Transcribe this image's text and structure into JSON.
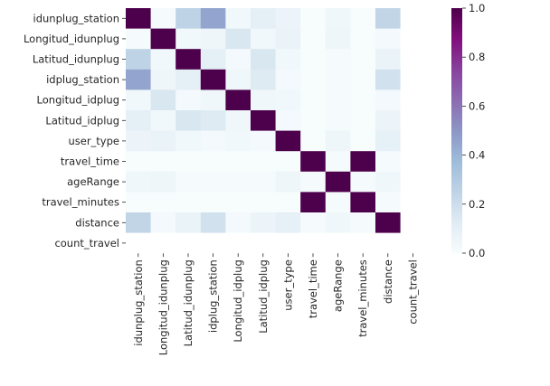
{
  "chart_data": {
    "type": "heatmap",
    "title": "",
    "xlabel": "",
    "ylabel": "",
    "variables": [
      "idunplug_station",
      "Longitud_idunplug",
      "Latitud_idunplug",
      "idplug_station",
      "Longitud_idplug",
      "Latitud_idplug",
      "user_type",
      "travel_time",
      "ageRange",
      "travel_minutes",
      "distance",
      "count_travel"
    ],
    "matrix": [
      [
        1.0,
        0.01,
        0.25,
        0.45,
        0.03,
        0.1,
        0.06,
        0.0,
        0.04,
        0.0,
        0.24,
        null
      ],
      [
        0.01,
        1.0,
        0.03,
        0.05,
        0.15,
        0.03,
        0.07,
        0.0,
        0.05,
        0.0,
        0.02,
        null
      ],
      [
        0.25,
        0.03,
        1.0,
        0.1,
        0.02,
        0.15,
        0.03,
        0.0,
        0.01,
        0.0,
        0.07,
        null
      ],
      [
        0.45,
        0.05,
        0.1,
        1.0,
        0.04,
        0.13,
        0.02,
        0.0,
        0.01,
        0.0,
        0.18,
        null
      ],
      [
        0.03,
        0.15,
        0.02,
        0.04,
        1.0,
        0.04,
        0.03,
        0.0,
        0.01,
        0.0,
        0.02,
        null
      ],
      [
        0.1,
        0.03,
        0.15,
        0.13,
        0.04,
        1.0,
        0.02,
        0.0,
        0.01,
        0.0,
        0.06,
        null
      ],
      [
        0.06,
        0.07,
        0.03,
        0.02,
        0.03,
        0.02,
        1.0,
        0.0,
        0.05,
        0.0,
        0.09,
        null
      ],
      [
        0.0,
        0.0,
        0.0,
        0.0,
        0.0,
        0.0,
        0.0,
        1.0,
        0.01,
        1.0,
        0.01,
        null
      ],
      [
        0.04,
        0.05,
        0.01,
        0.01,
        0.01,
        0.01,
        0.05,
        0.01,
        1.0,
        0.01,
        0.04,
        null
      ],
      [
        0.0,
        0.0,
        0.0,
        0.0,
        0.0,
        0.0,
        0.0,
        1.0,
        0.01,
        1.0,
        0.01,
        null
      ],
      [
        0.24,
        0.02,
        0.07,
        0.18,
        0.02,
        0.06,
        0.09,
        0.01,
        0.04,
        0.01,
        1.0,
        null
      ],
      [
        null,
        null,
        null,
        null,
        null,
        null,
        null,
        null,
        null,
        null,
        null,
        null
      ]
    ],
    "colormap": "BuPu",
    "colorbar": {
      "range": [
        0.0,
        1.0
      ],
      "ticks": [
        0.0,
        0.2,
        0.4,
        0.6,
        0.8,
        1.0
      ],
      "tick_labels": [
        "0.0",
        "0.2",
        "0.4",
        "0.6",
        "0.8",
        "1.0"
      ]
    },
    "colors": {
      "low": "#f7fcfd",
      "mid": "#8c96c6",
      "high": "#4d004b"
    },
    "missing_color": "#ffffff"
  }
}
